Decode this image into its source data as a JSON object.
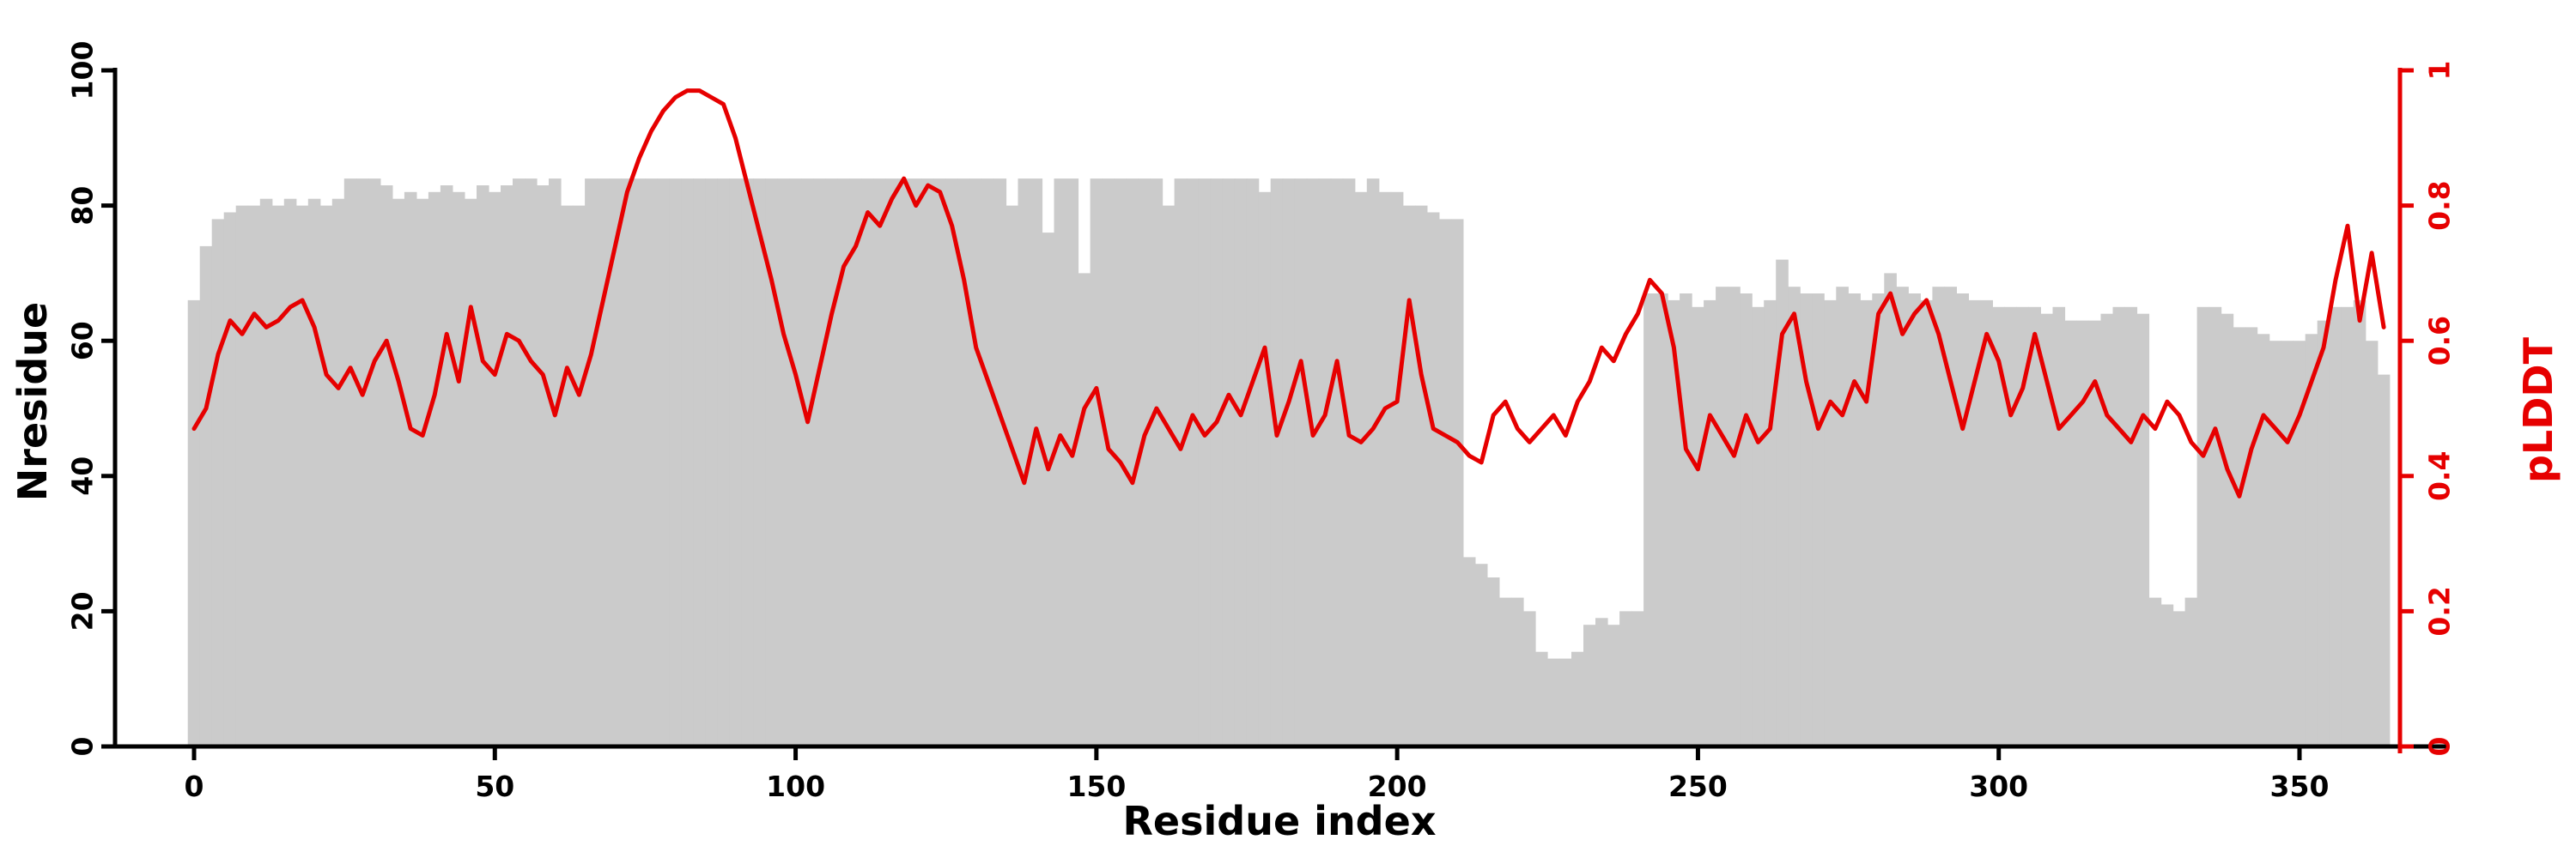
{
  "figure": {
    "background": "#ffffff",
    "bar_color": "#cbcbcb",
    "line_color": "#e60000",
    "axis_color": "#000000"
  },
  "axes": {
    "x": {
      "label": "Residue index",
      "ticks": [
        0,
        50,
        100,
        150,
        200,
        250,
        300,
        350
      ],
      "range": [
        0,
        370
      ]
    },
    "y_left": {
      "label": "Nresidue",
      "ticks": [
        0,
        20,
        40,
        60,
        80,
        100
      ],
      "range": [
        0,
        100
      ]
    },
    "y_right": {
      "label": "pLDDT",
      "tick_labels": [
        "0",
        "0.2",
        "0.4",
        "0.6",
        "0.8",
        "1"
      ],
      "tick_values": [
        0,
        0.2,
        0.4,
        0.6,
        0.8,
        1
      ],
      "range": [
        0,
        1
      ],
      "color": "#e60000"
    }
  },
  "chart_data": {
    "type": "bar",
    "title": "",
    "xlabel": "Residue index",
    "ylabel_left": "Nresidue",
    "ylabel_right": "pLDDT",
    "x_range": [
      0,
      370
    ],
    "y_left_range": [
      0,
      100
    ],
    "y_right_range": [
      0,
      1
    ],
    "grid": false,
    "legend": "none",
    "x": [
      0,
      2,
      4,
      6,
      8,
      10,
      12,
      14,
      16,
      18,
      20,
      22,
      24,
      26,
      28,
      30,
      32,
      34,
      36,
      38,
      40,
      42,
      44,
      46,
      48,
      50,
      52,
      54,
      56,
      58,
      60,
      62,
      64,
      66,
      68,
      70,
      72,
      74,
      76,
      78,
      80,
      82,
      84,
      86,
      88,
      90,
      92,
      94,
      96,
      98,
      100,
      102,
      104,
      106,
      108,
      110,
      112,
      114,
      116,
      118,
      120,
      122,
      124,
      126,
      128,
      130,
      132,
      134,
      136,
      138,
      140,
      142,
      144,
      146,
      148,
      150,
      152,
      154,
      156,
      158,
      160,
      162,
      164,
      166,
      168,
      170,
      172,
      174,
      176,
      178,
      180,
      182,
      184,
      186,
      188,
      190,
      192,
      194,
      196,
      198,
      200,
      202,
      204,
      206,
      208,
      210,
      212,
      214,
      216,
      218,
      220,
      222,
      224,
      226,
      228,
      230,
      232,
      234,
      236,
      238,
      240,
      242,
      244,
      246,
      248,
      250,
      252,
      254,
      256,
      258,
      260,
      262,
      264,
      266,
      268,
      270,
      272,
      274,
      276,
      278,
      280,
      282,
      284,
      286,
      288,
      290,
      292,
      294,
      296,
      298,
      300,
      302,
      304,
      306,
      308,
      310,
      312,
      314,
      316,
      318,
      320,
      322,
      324,
      326,
      328,
      330,
      332,
      334,
      336,
      338,
      340,
      342,
      344,
      346,
      348,
      350,
      352,
      354,
      356,
      358,
      360,
      362,
      364
    ],
    "series": [
      {
        "name": "Nresidue",
        "type": "bar",
        "axis": "left",
        "color": "#cbcbcb",
        "values": [
          66,
          74,
          78,
          79,
          80,
          80,
          81,
          80,
          81,
          80,
          81,
          80,
          81,
          84,
          84,
          84,
          83,
          81,
          82,
          81,
          82,
          83,
          82,
          81,
          83,
          82,
          83,
          84,
          84,
          83,
          84,
          80,
          80,
          84,
          84,
          84,
          84,
          84,
          84,
          84,
          84,
          84,
          84,
          84,
          84,
          84,
          84,
          84,
          84,
          84,
          84,
          84,
          84,
          84,
          84,
          84,
          84,
          84,
          84,
          84,
          84,
          84,
          84,
          84,
          84,
          84,
          84,
          84,
          80,
          84,
          84,
          76,
          84,
          84,
          70,
          84,
          84,
          84,
          84,
          84,
          84,
          80,
          84,
          84,
          84,
          84,
          84,
          84,
          84,
          82,
          84,
          84,
          84,
          84,
          84,
          84,
          84,
          82,
          84,
          82,
          82,
          80,
          80,
          79,
          78,
          78,
          28,
          27,
          25,
          22,
          22,
          20,
          14,
          13,
          13,
          14,
          18,
          19,
          18,
          20,
          20,
          67,
          67,
          66,
          67,
          65,
          66,
          68,
          68,
          67,
          65,
          66,
          72,
          68,
          67,
          67,
          66,
          68,
          67,
          66,
          67,
          70,
          68,
          67,
          66,
          68,
          68,
          67,
          66,
          66,
          65,
          65,
          65,
          65,
          64,
          65,
          63,
          63,
          63,
          64,
          65,
          65,
          64,
          22,
          21,
          20,
          22,
          65,
          65,
          64,
          62,
          62,
          61,
          60,
          60,
          60,
          61,
          63,
          65,
          65,
          66,
          60,
          55
        ]
      },
      {
        "name": "pLDDT",
        "type": "line",
        "axis": "right",
        "color": "#e60000",
        "values": [
          0.47,
          0.5,
          0.58,
          0.63,
          0.61,
          0.64,
          0.62,
          0.63,
          0.65,
          0.66,
          0.62,
          0.55,
          0.53,
          0.56,
          0.52,
          0.57,
          0.6,
          0.54,
          0.47,
          0.46,
          0.52,
          0.61,
          0.54,
          0.65,
          0.57,
          0.55,
          0.61,
          0.6,
          0.57,
          0.55,
          0.49,
          0.56,
          0.52,
          0.58,
          0.66,
          0.74,
          0.82,
          0.87,
          0.91,
          0.94,
          0.96,
          0.97,
          0.97,
          0.96,
          0.95,
          0.9,
          0.83,
          0.76,
          0.69,
          0.61,
          0.55,
          0.48,
          0.56,
          0.64,
          0.71,
          0.74,
          0.79,
          0.77,
          0.81,
          0.84,
          0.8,
          0.83,
          0.82,
          0.77,
          0.69,
          0.59,
          0.54,
          0.49,
          0.44,
          0.39,
          0.47,
          0.41,
          0.46,
          0.43,
          0.5,
          0.53,
          0.44,
          0.42,
          0.39,
          0.46,
          0.5,
          0.47,
          0.44,
          0.49,
          0.46,
          0.48,
          0.52,
          0.49,
          0.54,
          0.59,
          0.46,
          0.51,
          0.57,
          0.46,
          0.49,
          0.57,
          0.46,
          0.45,
          0.47,
          0.5,
          0.51,
          0.66,
          0.55,
          0.47,
          0.46,
          0.45,
          0.43,
          0.42,
          0.49,
          0.51,
          0.47,
          0.45,
          0.47,
          0.49,
          0.46,
          0.51,
          0.54,
          0.59,
          0.57,
          0.61,
          0.64,
          0.69,
          0.67,
          0.59,
          0.44,
          0.41,
          0.49,
          0.46,
          0.43,
          0.49,
          0.45,
          0.47,
          0.61,
          0.64,
          0.54,
          0.47,
          0.51,
          0.49,
          0.54,
          0.51,
          0.64,
          0.67,
          0.61,
          0.64,
          0.66,
          0.61,
          0.54,
          0.47,
          0.54,
          0.61,
          0.57,
          0.49,
          0.53,
          0.61,
          0.54,
          0.47,
          0.49,
          0.51,
          0.54,
          0.49,
          0.47,
          0.45,
          0.49,
          0.47,
          0.51,
          0.49,
          0.45,
          0.43,
          0.47,
          0.41,
          0.37,
          0.44,
          0.49,
          0.47,
          0.45,
          0.49,
          0.54,
          0.59,
          0.69,
          0.77,
          0.63,
          0.73,
          0.62
        ]
      }
    ]
  }
}
